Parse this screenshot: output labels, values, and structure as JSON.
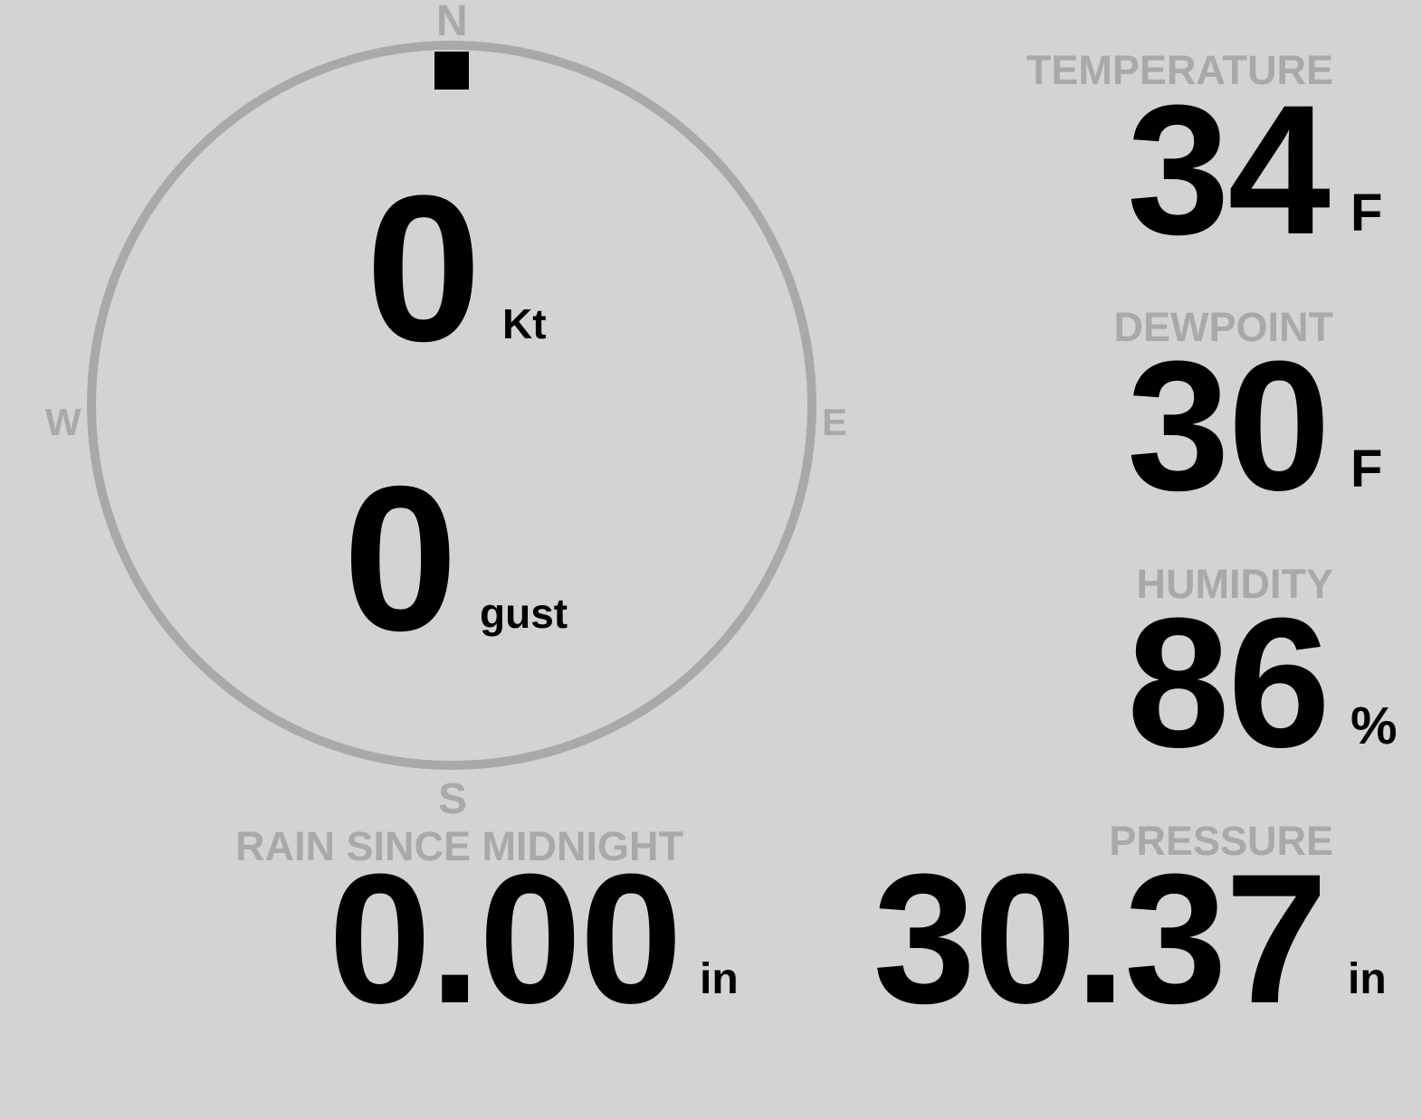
{
  "compass": {
    "north": "N",
    "south": "S",
    "east": "E",
    "west": "W",
    "wind_direction_deg": 0,
    "ring_color": "#a9a9a9",
    "marker_color": "#000000"
  },
  "wind": {
    "speed": "0",
    "speed_unit": "Kt",
    "gust": "0",
    "gust_unit": "gust"
  },
  "temperature": {
    "label": "TEMPERATURE",
    "value": "34",
    "unit": "F"
  },
  "dewpoint": {
    "label": "DEWPOINT",
    "value": "30",
    "unit": "F"
  },
  "humidity": {
    "label": "HUMIDITY",
    "value": "86",
    "unit": "%"
  },
  "pressure": {
    "label": "PRESSURE",
    "value": "30.37",
    "unit": "in"
  },
  "rain": {
    "label": "RAIN SINCE MIDNIGHT",
    "value": "0.00",
    "unit": "in"
  },
  "colors": {
    "background": "#d3d3d3",
    "label": "#a9a9a9",
    "value": "#000000"
  }
}
